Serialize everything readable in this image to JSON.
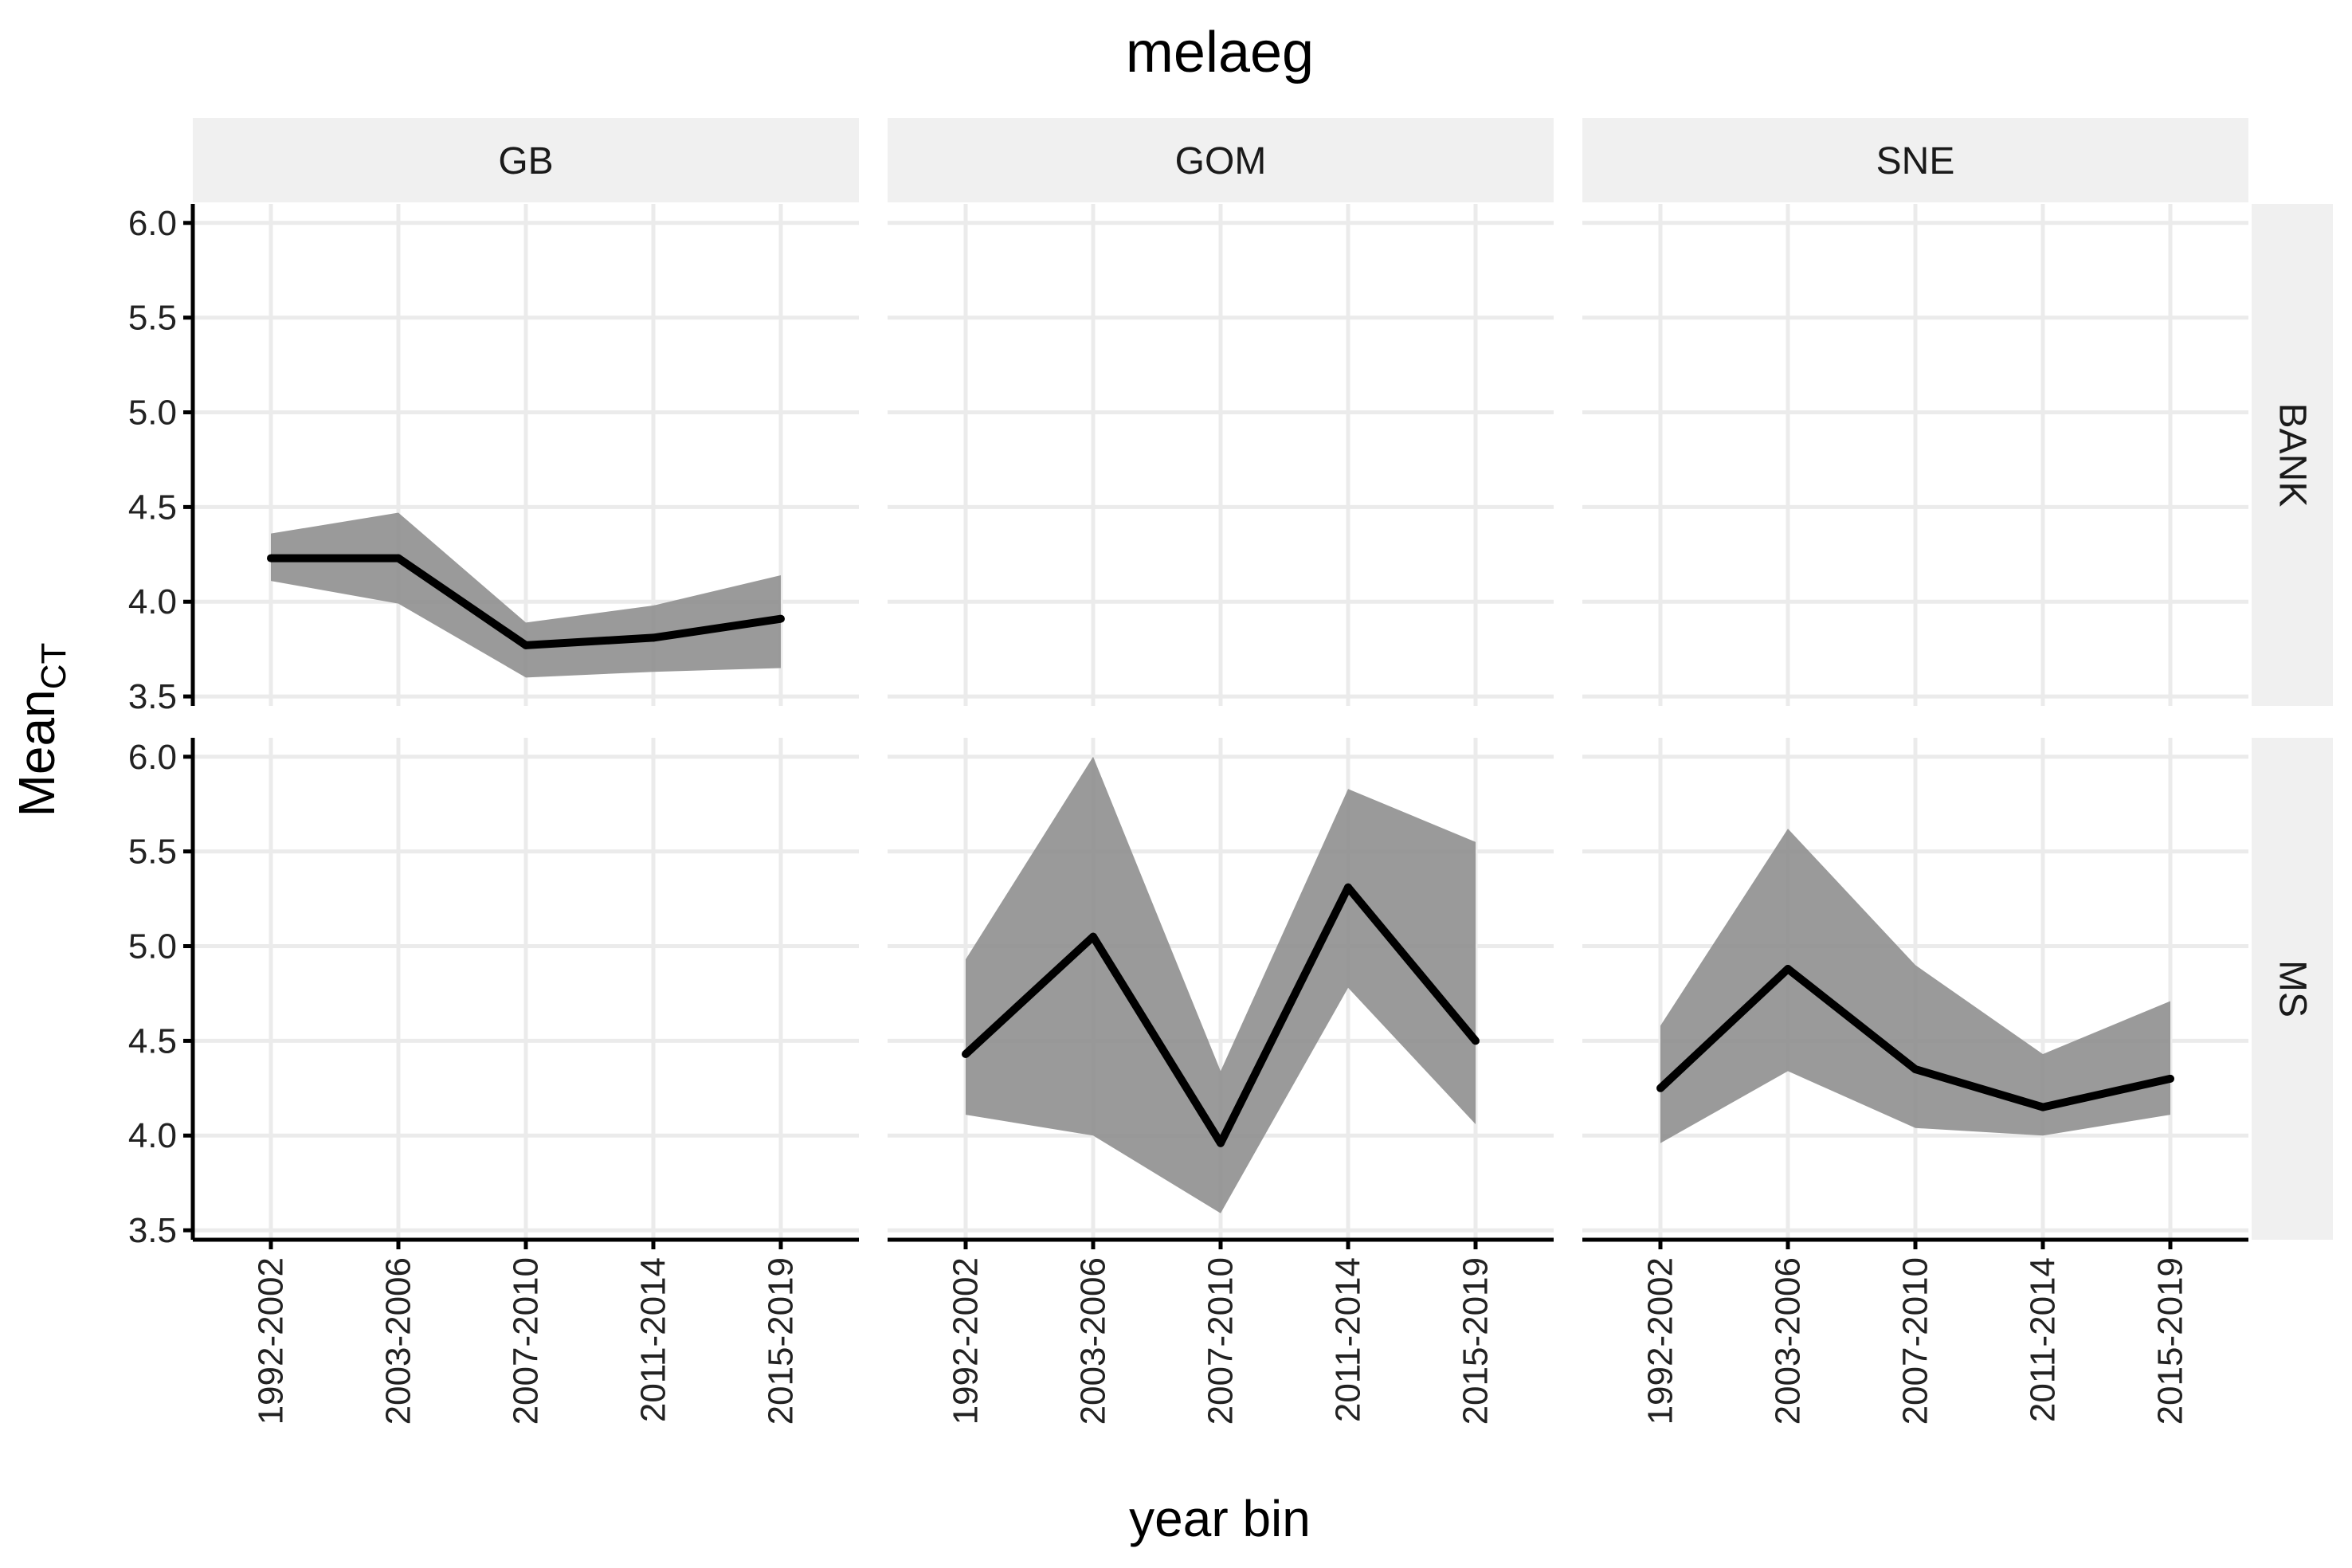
{
  "chart_data": {
    "type": "line",
    "title": "melaeg",
    "xlabel": "year bin",
    "ylabel": "Mean",
    "ylabel_subscript": "CT",
    "categories": [
      "1992-2002",
      "2003-2006",
      "2007-2010",
      "2011-2014",
      "2015-2019"
    ],
    "ylim": [
      3.45,
      6.1
    ],
    "yticks": [
      3.5,
      4.0,
      4.5,
      5.0,
      5.5,
      6.0
    ],
    "ytick_labels": [
      "3.5",
      "4.0",
      "4.5",
      "5.0",
      "5.5",
      "6.0"
    ],
    "grid": true,
    "col_facets": [
      "GB",
      "GOM",
      "SNE"
    ],
    "row_facets": [
      "BANK",
      "MS"
    ],
    "panels": [
      {
        "row": "BANK",
        "col": "GB",
        "values": [
          4.23,
          4.23,
          3.77,
          3.81,
          3.91
        ],
        "lower": [
          4.11,
          3.99,
          3.6,
          3.63,
          3.65
        ],
        "upper": [
          4.36,
          4.47,
          3.89,
          3.98,
          4.14
        ]
      },
      {
        "row": "BANK",
        "col": "GOM",
        "values": [],
        "lower": [],
        "upper": []
      },
      {
        "row": "BANK",
        "col": "SNE",
        "values": [],
        "lower": [],
        "upper": []
      },
      {
        "row": "MS",
        "col": "GB",
        "values": [],
        "lower": [],
        "upper": []
      },
      {
        "row": "MS",
        "col": "GOM",
        "values": [
          4.43,
          5.05,
          3.96,
          5.31,
          4.5
        ],
        "lower": [
          4.11,
          4.0,
          3.59,
          4.78,
          4.06
        ],
        "upper": [
          4.93,
          6.0,
          4.34,
          5.83,
          5.55
        ]
      },
      {
        "row": "MS",
        "col": "SNE",
        "values": [
          4.25,
          4.88,
          4.35,
          4.15,
          4.3
        ],
        "lower": [
          3.96,
          4.34,
          4.04,
          4.0,
          4.11
        ],
        "upper": [
          4.58,
          5.62,
          4.9,
          4.43,
          4.71
        ]
      }
    ],
    "colors": {
      "line": "#000000",
      "ribbon": "#8c8c8c",
      "strip": "#f0f0f0",
      "grid": "#ebebeb"
    }
  }
}
